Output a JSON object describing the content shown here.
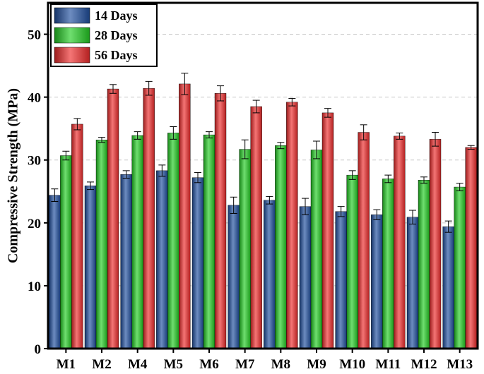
{
  "chart_data": {
    "type": "bar",
    "title": "",
    "xlabel": "",
    "ylabel": "Compressive Strength (MPa)",
    "ylim": [
      0,
      55
    ],
    "yticks": [
      0,
      10,
      20,
      30,
      40,
      50
    ],
    "grid": true,
    "legend_position": "top-left",
    "categories": [
      "M1",
      "M2",
      "M4",
      "M5",
      "M6",
      "M7",
      "M8",
      "M9",
      "M10",
      "M11",
      "M12",
      "M13"
    ],
    "series": [
      {
        "name": "14 Days",
        "color": "#1f4e9e",
        "values": [
          24.4,
          25.9,
          27.7,
          28.3,
          27.2,
          22.8,
          23.6,
          22.6,
          21.8,
          21.3,
          20.9,
          19.4
        ],
        "errors": [
          1.0,
          0.6,
          0.6,
          0.9,
          0.8,
          1.3,
          0.6,
          1.3,
          0.8,
          0.8,
          1.1,
          0.9
        ]
      },
      {
        "name": "28 Days",
        "color": "#22cc22",
        "values": [
          30.7,
          33.2,
          33.9,
          34.3,
          34.0,
          31.7,
          32.3,
          31.6,
          27.6,
          27.0,
          26.8,
          25.7
        ],
        "errors": [
          0.7,
          0.4,
          0.6,
          1.0,
          0.5,
          1.5,
          0.5,
          1.4,
          0.7,
          0.6,
          0.5,
          0.6
        ]
      },
      {
        "name": "56 Days",
        "color": "#ee2a2a",
        "values": [
          35.7,
          41.3,
          41.4,
          42.1,
          40.6,
          38.5,
          39.2,
          37.5,
          34.4,
          33.8,
          33.3,
          32.0
        ],
        "errors": [
          0.9,
          0.7,
          1.1,
          1.7,
          1.2,
          1.0,
          0.6,
          0.7,
          1.2,
          0.5,
          1.1,
          0.3
        ]
      }
    ]
  }
}
